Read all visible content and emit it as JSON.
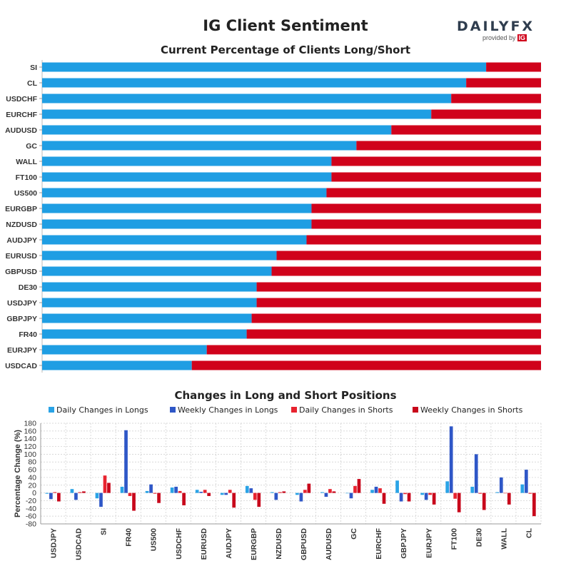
{
  "header": {
    "title": "IG Client Sentiment",
    "logo_main": "DAILY",
    "logo_fx": "FX",
    "logo_sub": "provided by",
    "logo_ig": "IG"
  },
  "colors": {
    "long": "#1f9ee3",
    "short": "#d0021b",
    "daily_longs": "#29a3e6",
    "weekly_longs": "#2f57c7",
    "daily_shorts": "#e8232f",
    "weekly_shorts": "#c8071b"
  },
  "chart_data": [
    {
      "type": "bar",
      "orientation": "horizontal-stacked",
      "title": "Current Percentage of Clients Long/Short",
      "categories": [
        "SI",
        "CL",
        "USDCHF",
        "EURCHF",
        "AUDUSD",
        "GC",
        "WALL",
        "FT100",
        "US500",
        "EURGBP",
        "NZDUSD",
        "AUDJPY",
        "EURUSD",
        "GBPUSD",
        "DE30",
        "USDJPY",
        "GBPJPY",
        "FR40",
        "EURJPY",
        "USDCAD"
      ],
      "series": [
        {
          "values": [
            89,
            85,
            82,
            78,
            70,
            63,
            58,
            58,
            57,
            54,
            54,
            53,
            47,
            46,
            43,
            43,
            42,
            41,
            33,
            30
          ]
        },
        {
          "values": [
            11,
            15,
            18,
            22,
            30,
            37,
            42,
            42,
            43,
            46,
            46,
            47,
            53,
            54,
            57,
            57,
            58,
            59,
            67,
            70
          ]
        }
      ],
      "xlim": [
        0,
        100
      ]
    },
    {
      "type": "bar",
      "title": "Changes in Long and Short Positions",
      "ylabel": "Percentage Change (%)",
      "ylim": [
        -80,
        180
      ],
      "yticks": [
        180,
        160,
        140,
        120,
        100,
        80,
        60,
        40,
        20,
        0,
        -20,
        -40,
        -60,
        -80
      ],
      "categories": [
        "USDJPY",
        "USDCAD",
        "SI",
        "FR40",
        "US500",
        "USDCHF",
        "EURUSD",
        "AUDJPY",
        "EURGBP",
        "NZDUSD",
        "GBPUSD",
        "AUDUSD",
        "GC",
        "EURCHF",
        "GBPJPY",
        "EURJPY",
        "FT100",
        "DE30",
        "WALL",
        "CL"
      ],
      "series": [
        {
          "name": "Daily Changes in Longs",
          "values": [
            -2,
            10,
            -14,
            16,
            5,
            14,
            8,
            -5,
            18,
            2,
            -5,
            2,
            0,
            8,
            32,
            -5,
            30,
            16,
            2,
            22
          ]
        },
        {
          "name": "Weekly Changes in Longs",
          "values": [
            -16,
            -18,
            -36,
            162,
            22,
            16,
            3,
            -5,
            12,
            -18,
            -22,
            -10,
            -14,
            16,
            -22,
            -18,
            172,
            100,
            40,
            60
          ]
        },
        {
          "name": "Daily Changes in Shorts",
          "values": [
            2,
            2,
            45,
            -8,
            -2,
            5,
            8,
            8,
            -18,
            2,
            8,
            10,
            18,
            12,
            -3,
            -5,
            -15,
            -2,
            0,
            -2
          ]
        },
        {
          "name": "Weekly Changes in Shorts",
          "values": [
            -22,
            4,
            26,
            -46,
            -26,
            -32,
            -8,
            -38,
            -36,
            4,
            24,
            4,
            36,
            -28,
            -22,
            -30,
            -50,
            -44,
            -30,
            -60
          ]
        }
      ]
    }
  ]
}
